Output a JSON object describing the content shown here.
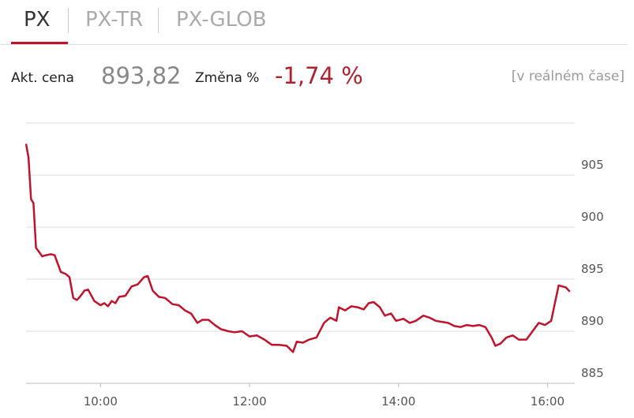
{
  "tabs": [
    "PX",
    "PX-TR",
    "PX-GLOB"
  ],
  "quote": {
    "price_label": "Akt. cena",
    "price": "893,82",
    "change_label": "Změna %",
    "change": "-1,74 %",
    "note": "[v reálném čase]"
  },
  "chart_data": {
    "type": "line",
    "color": "#c0132b",
    "x": [
      "09:00",
      "09:02",
      "09:04",
      "09:06",
      "09:08",
      "09:10",
      "09:13",
      "09:16",
      "09:20",
      "09:23",
      "09:28",
      "09:32",
      "09:35",
      "09:38",
      "09:41",
      "09:44",
      "09:47",
      "09:50",
      "09:55",
      "10:00",
      "10:03",
      "10:06",
      "10:09",
      "10:12",
      "10:15",
      "10:20",
      "10:25",
      "10:30",
      "10:35",
      "10:38",
      "10:42",
      "10:47",
      "10:52",
      "10:58",
      "11:03",
      "11:08",
      "11:13",
      "11:18",
      "11:22",
      "11:27",
      "11:32",
      "11:37",
      "11:43",
      "11:48",
      "11:54",
      "12:00",
      "12:06",
      "12:12",
      "12:18",
      "12:24",
      "12:30",
      "12:35",
      "12:38",
      "12:43",
      "12:48",
      "12:54",
      "13:00",
      "13:05",
      "13:10",
      "13:12",
      "13:17",
      "13:22",
      "13:27",
      "13:32",
      "13:36",
      "13:40",
      "13:45",
      "13:49",
      "13:54",
      "13:58",
      "14:04",
      "14:09",
      "14:14",
      "14:20",
      "14:25",
      "14:30",
      "14:35",
      "14:40",
      "14:45",
      "14:50",
      "14:55",
      "15:00",
      "15:05",
      "15:10",
      "15:15",
      "15:18",
      "15:22",
      "15:27",
      "15:32",
      "15:37",
      "15:43",
      "15:48",
      "15:53",
      "15:58",
      "16:03",
      "16:06",
      "16:09",
      "16:12",
      "16:15",
      "16:18"
    ],
    "values": [
      908,
      906.7,
      902.7,
      902.3,
      898,
      897.7,
      897.2,
      897.3,
      897.4,
      897.3,
      895.7,
      895.5,
      895.2,
      893.2,
      893,
      893.4,
      893.9,
      894,
      892.9,
      892.5,
      892.7,
      892.4,
      892.9,
      892.7,
      893.3,
      893.4,
      894.3,
      894.5,
      895.2,
      895.3,
      893.9,
      893.3,
      893.2,
      892.6,
      892.5,
      892,
      891.7,
      890.8,
      891.1,
      891.1,
      890.6,
      890.2,
      890,
      889.9,
      890,
      889.5,
      889.6,
      889.2,
      888.7,
      888.7,
      888.6,
      888,
      889,
      888.9,
      889.2,
      889.4,
      890.8,
      891.3,
      891,
      892.3,
      892,
      892.4,
      892.3,
      892.1,
      892.7,
      892.8,
      892.3,
      891.5,
      891.7,
      891,
      891.2,
      890.8,
      891,
      891.5,
      891.3,
      891,
      890.9,
      890.8,
      890.5,
      890.4,
      890.6,
      890.5,
      890.6,
      890.4,
      889.4,
      888.6,
      888.8,
      889.4,
      889.6,
      889.2,
      889.2,
      890,
      890.8,
      890.6,
      891,
      892.7,
      894.4,
      894.3,
      894.2,
      893.8
    ],
    "xlim": [
      "09:00",
      "16:22"
    ],
    "xticks": [
      "10:00",
      "12:00",
      "14:00",
      "16:00"
    ],
    "ylim": [
      885,
      910
    ],
    "yticks": [
      885,
      890,
      895,
      900,
      905
    ],
    "grid": true
  }
}
